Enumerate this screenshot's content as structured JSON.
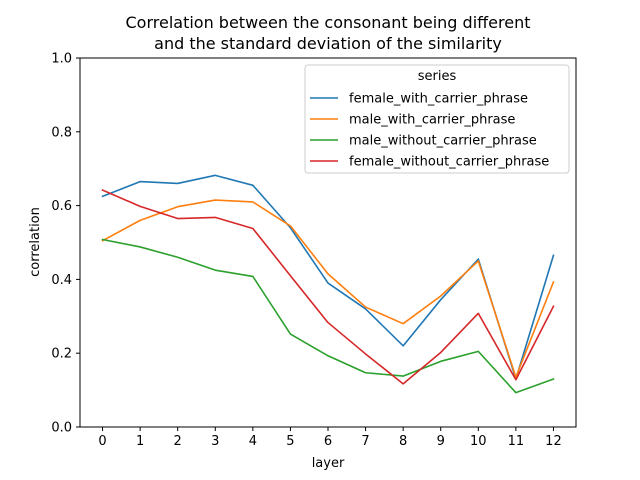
{
  "chart_data": {
    "type": "line",
    "title_lines": [
      "Correlation between the consonant being different",
      "and the standard deviation of the similarity"
    ],
    "xlabel": "layer",
    "ylabel": "correlation",
    "x": [
      0,
      1,
      2,
      3,
      4,
      5,
      6,
      7,
      8,
      9,
      10,
      11,
      12
    ],
    "ylim": [
      0.0,
      1.0
    ],
    "yticks": [
      "0.0",
      "0.2",
      "0.4",
      "0.6",
      "0.8",
      "1.0"
    ],
    "grid": false,
    "legend": {
      "title": "series",
      "placement": "top-right"
    },
    "series": [
      {
        "name": "female_with_carrier_phrase",
        "color": "#1f77b4",
        "values": [
          0.625,
          0.665,
          0.66,
          0.682,
          0.655,
          0.54,
          0.39,
          0.32,
          0.22,
          0.345,
          0.455,
          0.13,
          0.465
        ]
      },
      {
        "name": "male_with_carrier_phrase",
        "color": "#ff7f0e",
        "values": [
          0.505,
          0.56,
          0.597,
          0.615,
          0.61,
          0.545,
          0.415,
          0.325,
          0.28,
          0.355,
          0.45,
          0.135,
          0.393
        ]
      },
      {
        "name": "male_without_carrier_phrase",
        "color": "#2ca02c",
        "values": [
          0.508,
          0.488,
          0.46,
          0.425,
          0.408,
          0.252,
          0.193,
          0.147,
          0.138,
          0.178,
          0.205,
          0.093,
          0.13
        ]
      },
      {
        "name": "female_without_carrier_phrase",
        "color": "#d62728",
        "values": [
          0.642,
          0.598,
          0.565,
          0.568,
          0.538,
          0.41,
          0.283,
          0.198,
          0.117,
          0.202,
          0.308,
          0.128,
          0.327
        ]
      }
    ]
  }
}
